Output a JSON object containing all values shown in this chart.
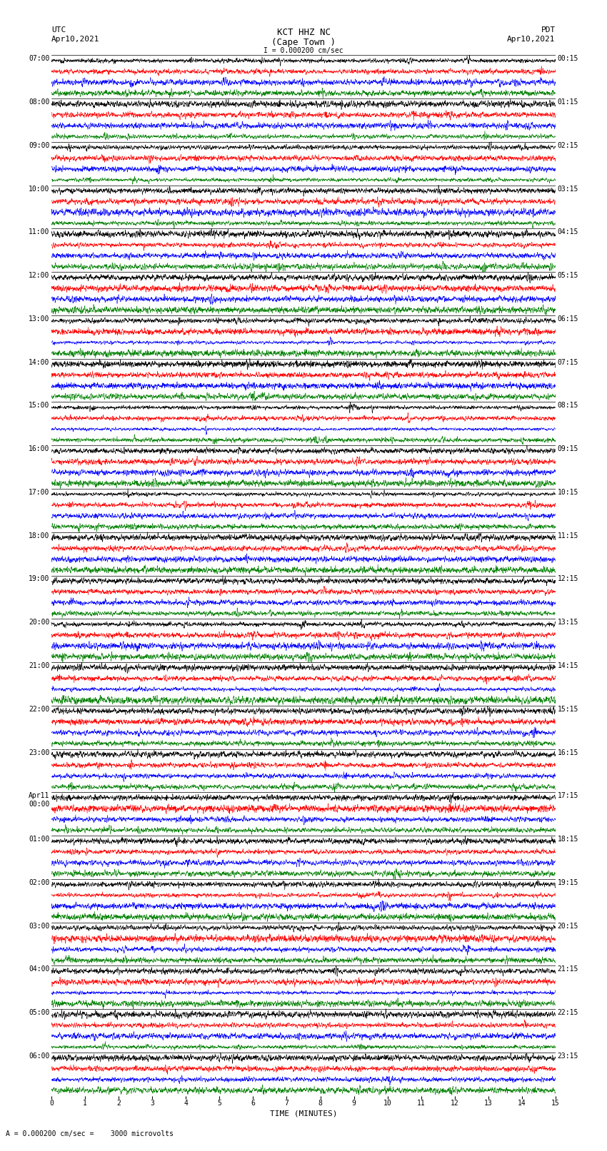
{
  "title_line1": "KCT HHZ NC",
  "title_line2": "(Cape Town )",
  "title_scale": "I = 0.000200 cm/sec",
  "left_header_line1": "UTC",
  "left_header_line2": "Apr10,2021",
  "right_header_line1": "PDT",
  "right_header_line2": "Apr10,2021",
  "footer_label": "TIME (MINUTES)",
  "scale_label": "= 0.000200 cm/sec =    3000 microvolts",
  "scale_marker": "A",
  "utc_labels": [
    "07:00",
    "08:00",
    "09:00",
    "10:00",
    "11:00",
    "12:00",
    "13:00",
    "14:00",
    "15:00",
    "16:00",
    "17:00",
    "18:00",
    "19:00",
    "20:00",
    "21:00",
    "22:00",
    "23:00",
    "Apr11\n00:00",
    "01:00",
    "02:00",
    "03:00",
    "04:00",
    "05:00",
    "06:00"
  ],
  "pdt_labels": [
    "00:15",
    "01:15",
    "02:15",
    "03:15",
    "04:15",
    "05:15",
    "06:15",
    "07:15",
    "08:15",
    "09:15",
    "10:15",
    "11:15",
    "12:15",
    "13:15",
    "14:15",
    "15:15",
    "16:15",
    "17:15",
    "18:15",
    "19:15",
    "20:15",
    "21:15",
    "22:15",
    "23:15"
  ],
  "n_rows": 24,
  "colors_order": [
    "black",
    "red",
    "blue",
    "green"
  ],
  "background_color": "white",
  "x_ticks": [
    0,
    1,
    2,
    3,
    4,
    5,
    6,
    7,
    8,
    9,
    10,
    11,
    12,
    13,
    14,
    15
  ],
  "xlim": [
    0,
    15
  ],
  "figsize": [
    8.5,
    16.13
  ],
  "dpi": 100
}
